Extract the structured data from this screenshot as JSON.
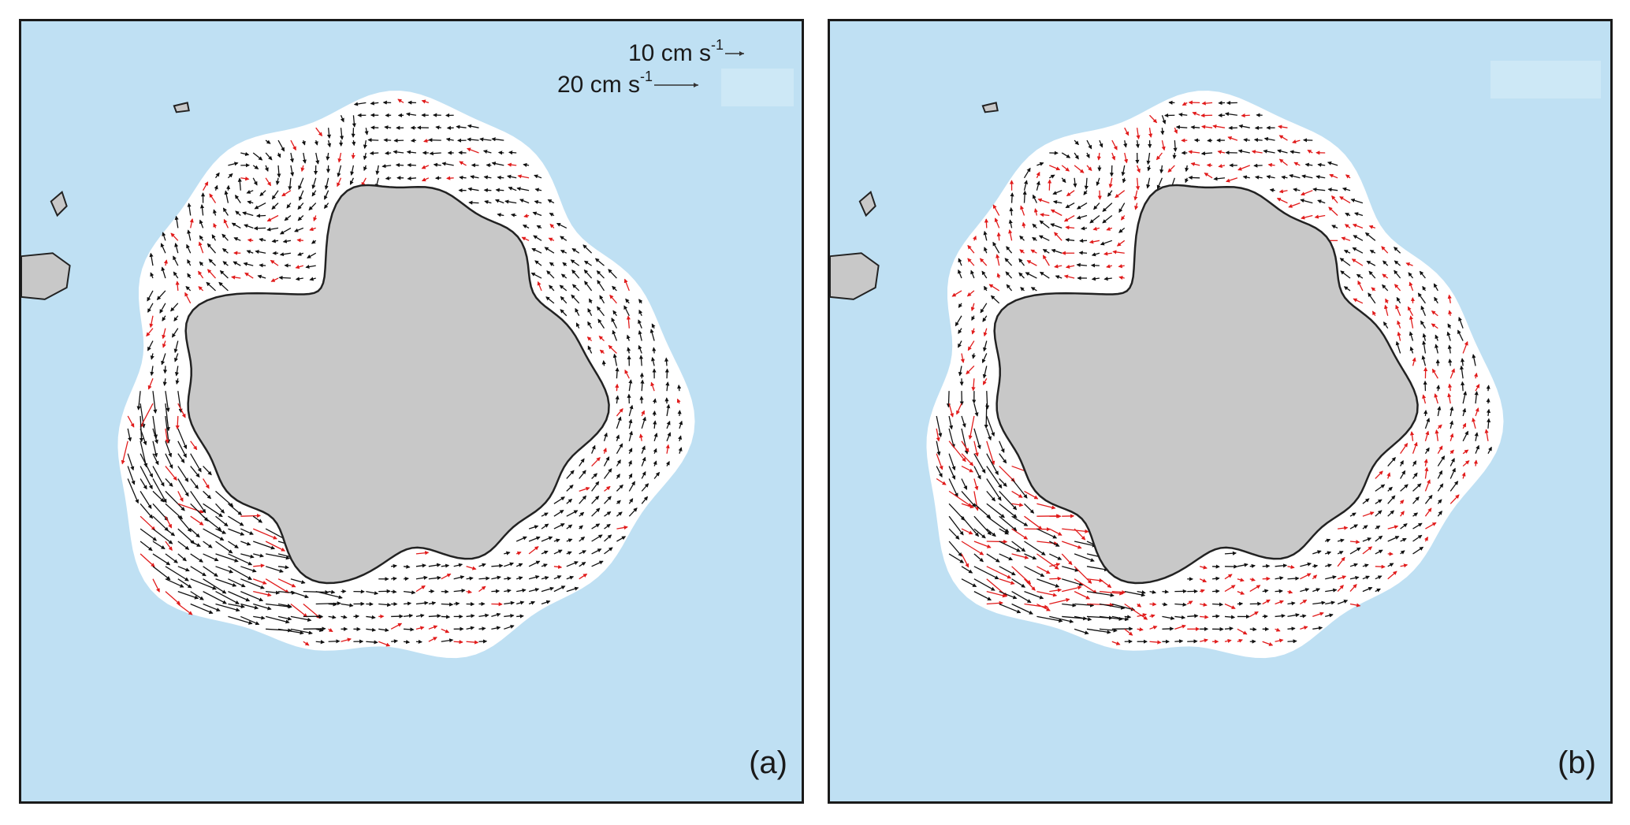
{
  "colors": {
    "ocean": "#bfe0f3",
    "sea_ice": "#ffffff",
    "land": "#c8c8c8",
    "coast": "#222222",
    "vector_black": "#111111",
    "vector_red": "#e11b1b"
  },
  "panels": [
    {
      "id": "a",
      "label": "(a)",
      "red_fraction": 0.16
    },
    {
      "id": "b",
      "label": "(b)",
      "red_fraction": 0.4
    }
  ],
  "legend": {
    "ref1": {
      "value": "10 cm s",
      "exp": "-1",
      "speed_cm_s": 10
    },
    "ref2": {
      "value": "20 cm s",
      "exp": "-1",
      "speed_cm_s": 20
    }
  }
}
